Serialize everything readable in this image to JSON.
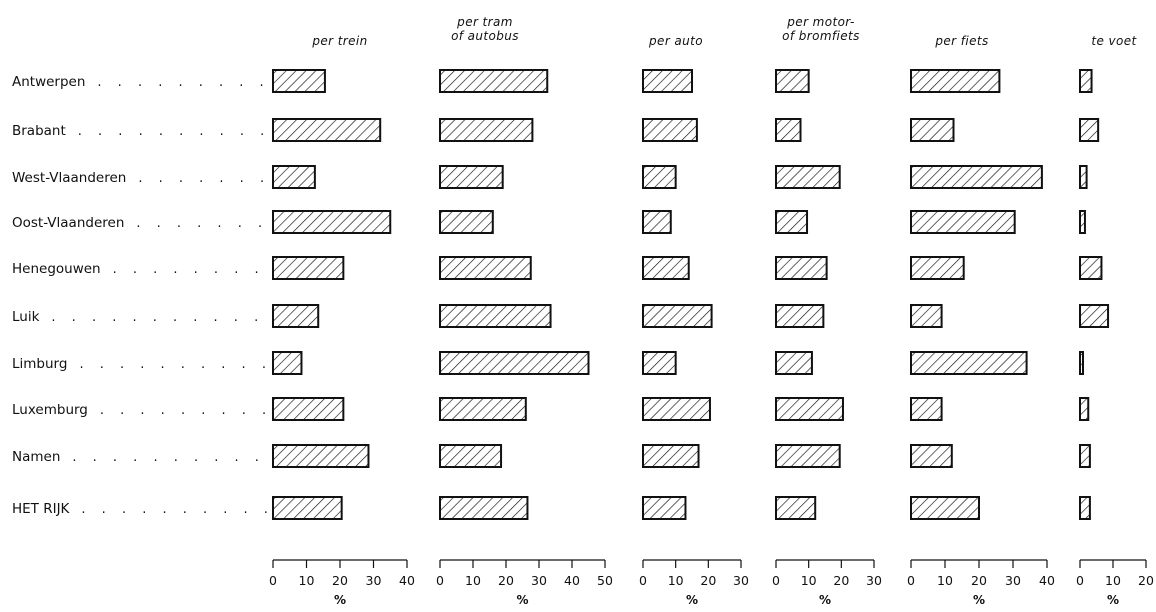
{
  "chart_data": {
    "type": "bar",
    "orientation": "horizontal",
    "unit": "%",
    "dot_leader": ". . . . . .",
    "categories": [
      "Antwerpen",
      "Brabant",
      "West-Vlaanderen",
      "Oost-Vlaanderen",
      "Henegouwen",
      "Luik",
      "Limburg",
      "Luxemburg",
      "Namen",
      "HET RIJK"
    ],
    "panels": [
      {
        "header": [
          "per trein",
          ""
        ],
        "ticks": [
          0,
          10,
          20,
          30,
          40
        ],
        "xlim": [
          0,
          40
        ],
        "values": [
          15.5,
          32,
          12.5,
          35,
          21,
          13.5,
          8.5,
          21,
          28.5,
          20.5
        ]
      },
      {
        "header": [
          "per tram",
          "of autobus"
        ],
        "ticks": [
          0,
          10,
          20,
          30,
          40,
          50
        ],
        "xlim": [
          0,
          50
        ],
        "values": [
          32.5,
          28,
          19,
          16,
          27.5,
          33.5,
          45,
          26,
          18.5,
          26.5
        ]
      },
      {
        "header": [
          "per auto",
          ""
        ],
        "ticks": [
          0,
          10,
          20,
          30
        ],
        "xlim": [
          0,
          30
        ],
        "values": [
          15,
          16.5,
          10,
          8.5,
          14,
          21,
          10,
          20.5,
          17,
          13
        ]
      },
      {
        "header": [
          "per motor-",
          "of bromfiets"
        ],
        "ticks": [
          0,
          10,
          20,
          30
        ],
        "xlim": [
          0,
          30
        ],
        "values": [
          10,
          7.5,
          19.5,
          9.5,
          15.5,
          14.5,
          11,
          20.5,
          19.5,
          12
        ]
      },
      {
        "header": [
          "per fiets",
          ""
        ],
        "ticks": [
          0,
          10,
          20,
          30,
          40
        ],
        "xlim": [
          0,
          40
        ],
        "values": [
          26,
          12.5,
          38.5,
          30.5,
          15.5,
          9,
          34,
          9,
          12,
          20
        ]
      },
      {
        "header": [
          "te voet",
          ""
        ],
        "ticks": [
          0,
          10,
          20
        ],
        "xlim": [
          0,
          20
        ],
        "values": [
          3.5,
          5.5,
          2,
          1.5,
          6.5,
          8.5,
          0.8,
          2.5,
          3,
          3
        ]
      }
    ]
  }
}
